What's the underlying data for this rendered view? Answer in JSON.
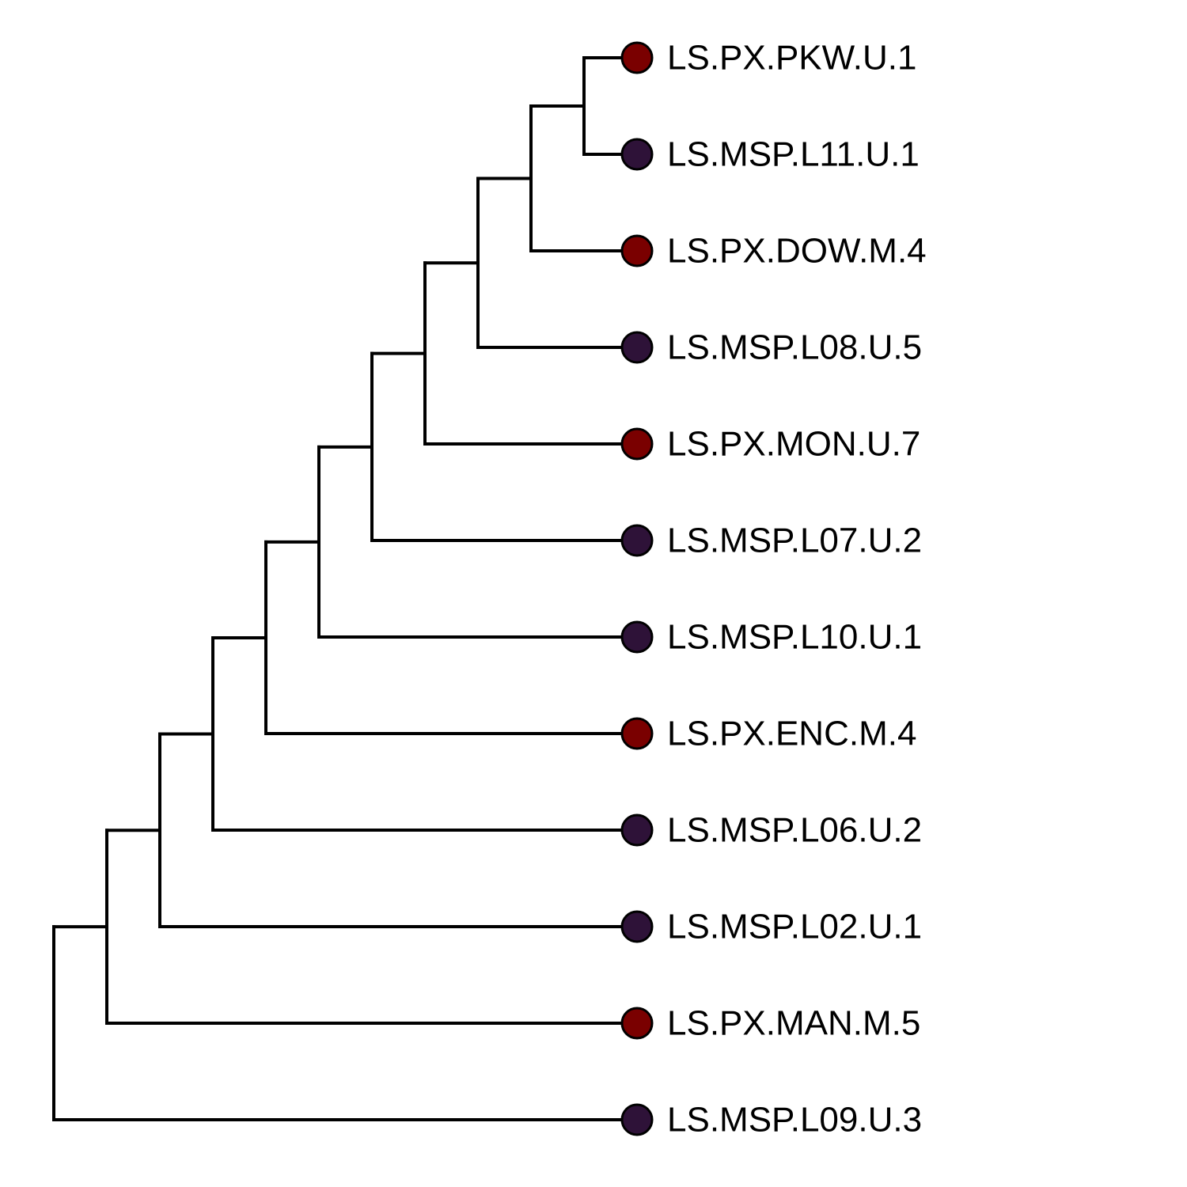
{
  "tree": {
    "colors": {
      "PX": "#7a0000",
      "MSP": "#2e1238"
    },
    "tips": [
      {
        "label": "LS.PX.PKW.U.1",
        "group": "PX"
      },
      {
        "label": "LS.MSP.L11.U.1",
        "group": "MSP"
      },
      {
        "label": "LS.PX.DOW.M.4",
        "group": "PX"
      },
      {
        "label": "LS.MSP.L08.U.5",
        "group": "MSP"
      },
      {
        "label": "LS.PX.MON.U.7",
        "group": "PX"
      },
      {
        "label": "LS.MSP.L07.U.2",
        "group": "MSP"
      },
      {
        "label": "LS.MSP.L10.U.1",
        "group": "MSP"
      },
      {
        "label": "LS.PX.ENC.M.4",
        "group": "PX"
      },
      {
        "label": "LS.MSP.L06.U.2",
        "group": "MSP"
      },
      {
        "label": "LS.MSP.L02.U.1",
        "group": "MSP"
      },
      {
        "label": "LS.PX.MAN.M.5",
        "group": "PX"
      },
      {
        "label": "LS.MSP.L09.U.3",
        "group": "MSP"
      }
    ]
  }
}
